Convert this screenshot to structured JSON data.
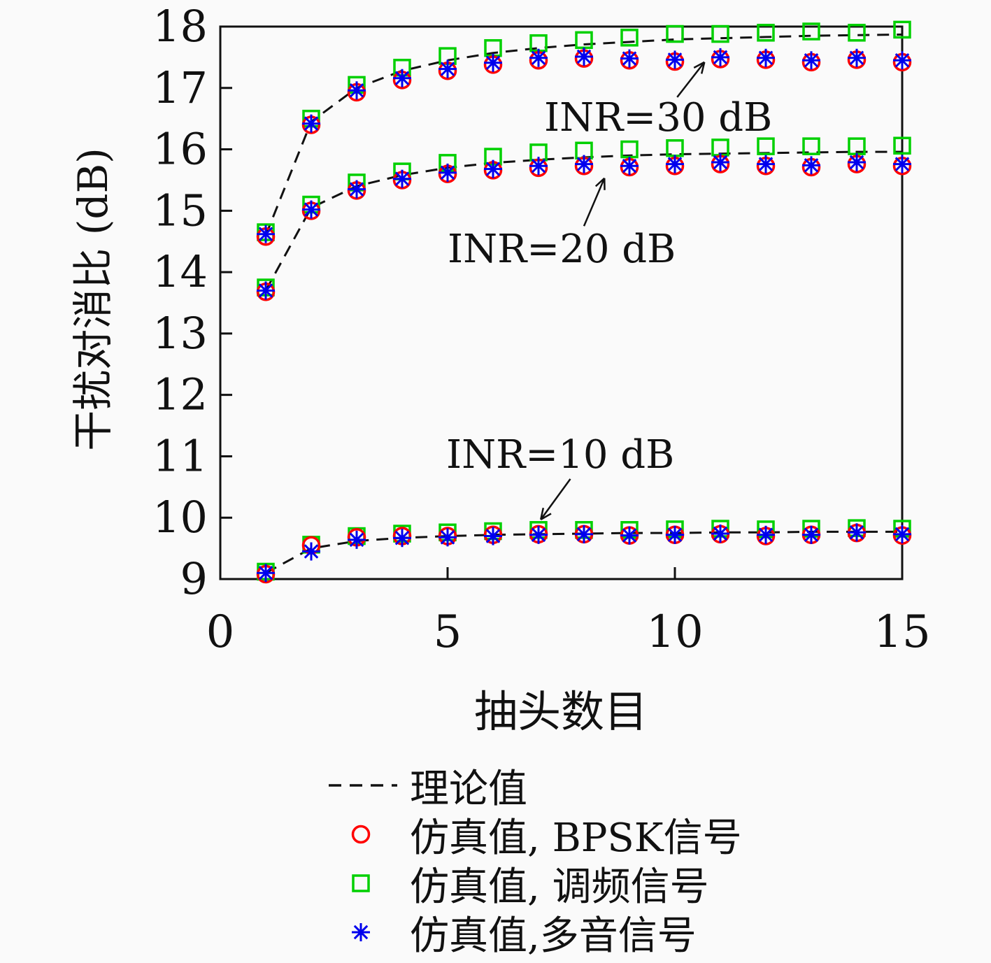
{
  "figure": {
    "background": "#fafafa"
  },
  "chart_data": {
    "type": "line",
    "title": "",
    "xlabel": "抽头数目",
    "ylabel": "干扰对消比 (dB)",
    "xlim": [
      0,
      15
    ],
    "ylim": [
      9,
      18
    ],
    "xticks": [
      0,
      5,
      10,
      15
    ],
    "yticks": [
      9,
      10,
      11,
      12,
      13,
      14,
      15,
      16,
      17,
      18
    ],
    "grid": false,
    "legend_position": "below-outside",
    "x": [
      1,
      2,
      3,
      4,
      5,
      6,
      7,
      8,
      9,
      10,
      11,
      12,
      13,
      14,
      15
    ],
    "series_style": {
      "theory": {
        "color": "#111111",
        "dash": true,
        "label": "理论值"
      },
      "bpsk": {
        "color": "#ff0000",
        "marker": "circle",
        "label": "仿真值, BPSK信号"
      },
      "fm": {
        "color": "#00d000",
        "marker": "square",
        "label": "仿真值, 调频信号"
      },
      "multitone": {
        "color": "#0000ee",
        "marker": "asterisk",
        "label": "仿真值,多音信号"
      }
    },
    "groups": [
      {
        "name": "INR=30 dB",
        "theory": [
          14.6,
          16.45,
          17.0,
          17.28,
          17.45,
          17.57,
          17.65,
          17.71,
          17.75,
          17.79,
          17.81,
          17.83,
          17.85,
          17.86,
          17.87
        ],
        "fm": [
          14.65,
          16.5,
          17.05,
          17.33,
          17.52,
          17.65,
          17.73,
          17.78,
          17.82,
          17.88,
          17.88,
          17.9,
          17.92,
          17.9,
          17.95
        ],
        "bpsk": [
          14.58,
          16.4,
          16.93,
          17.13,
          17.28,
          17.38,
          17.45,
          17.48,
          17.45,
          17.43,
          17.47,
          17.46,
          17.42,
          17.46,
          17.42
        ],
        "multitone": [
          14.62,
          16.42,
          16.96,
          17.16,
          17.31,
          17.41,
          17.49,
          17.51,
          17.48,
          17.46,
          17.5,
          17.49,
          17.45,
          17.49,
          17.45
        ]
      },
      {
        "name": "INR=20 dB",
        "theory": [
          13.7,
          15.05,
          15.4,
          15.58,
          15.7,
          15.78,
          15.83,
          15.87,
          15.9,
          15.92,
          15.93,
          15.94,
          15.95,
          15.96,
          15.96
        ],
        "fm": [
          13.75,
          15.1,
          15.46,
          15.64,
          15.78,
          15.88,
          15.95,
          15.98,
          16.0,
          16.02,
          16.03,
          16.05,
          16.05,
          16.05,
          16.06
        ],
        "bpsk": [
          13.68,
          15.0,
          15.33,
          15.5,
          15.6,
          15.66,
          15.7,
          15.73,
          15.71,
          15.73,
          15.76,
          15.73,
          15.71,
          15.76,
          15.73
        ],
        "multitone": [
          13.7,
          15.02,
          15.35,
          15.52,
          15.62,
          15.68,
          15.73,
          15.76,
          15.73,
          15.76,
          15.79,
          15.76,
          15.74,
          15.79,
          15.76
        ]
      },
      {
        "name": "INR=10 dB",
        "theory": [
          9.1,
          9.5,
          9.62,
          9.67,
          9.7,
          9.72,
          9.73,
          9.74,
          9.75,
          9.75,
          9.76,
          9.76,
          9.77,
          9.77,
          9.77
        ],
        "fm": [
          9.12,
          9.56,
          9.7,
          9.74,
          9.76,
          9.78,
          9.8,
          9.8,
          9.8,
          9.81,
          9.82,
          9.81,
          9.82,
          9.83,
          9.82
        ],
        "bpsk": [
          9.08,
          9.55,
          9.68,
          9.7,
          9.7,
          9.72,
          9.73,
          9.73,
          9.71,
          9.72,
          9.73,
          9.7,
          9.72,
          9.75,
          9.71
        ],
        "multitone": [
          9.1,
          9.45,
          9.64,
          9.67,
          9.68,
          9.7,
          9.72,
          9.73,
          9.71,
          9.72,
          9.74,
          9.72,
          9.72,
          9.76,
          9.73
        ]
      }
    ],
    "annotations": [
      {
        "label": "INR=30 dB",
        "arrow": {
          "x1": 10.05,
          "y1": 16.85,
          "x2": 10.65,
          "y2": 17.42
        }
      },
      {
        "label": "INR=20 dB",
        "arrow": {
          "x1": 8.0,
          "y1": 14.75,
          "x2": 8.45,
          "y2": 15.53
        }
      },
      {
        "label": "INR=10 dB",
        "arrow": {
          "x1": 7.7,
          "y1": 10.63,
          "x2": 7.05,
          "y2": 9.97
        }
      }
    ],
    "legend": [
      {
        "marker": "dash",
        "color": "#111111",
        "label": "理论值"
      },
      {
        "marker": "circle",
        "color": "#ff0000",
        "label": "仿真值, BPSK信号"
      },
      {
        "marker": "square",
        "color": "#00d000",
        "label": "仿真值, 调频信号"
      },
      {
        "marker": "asterisk",
        "color": "#0000ee",
        "label": "仿真值,多音信号"
      }
    ]
  }
}
